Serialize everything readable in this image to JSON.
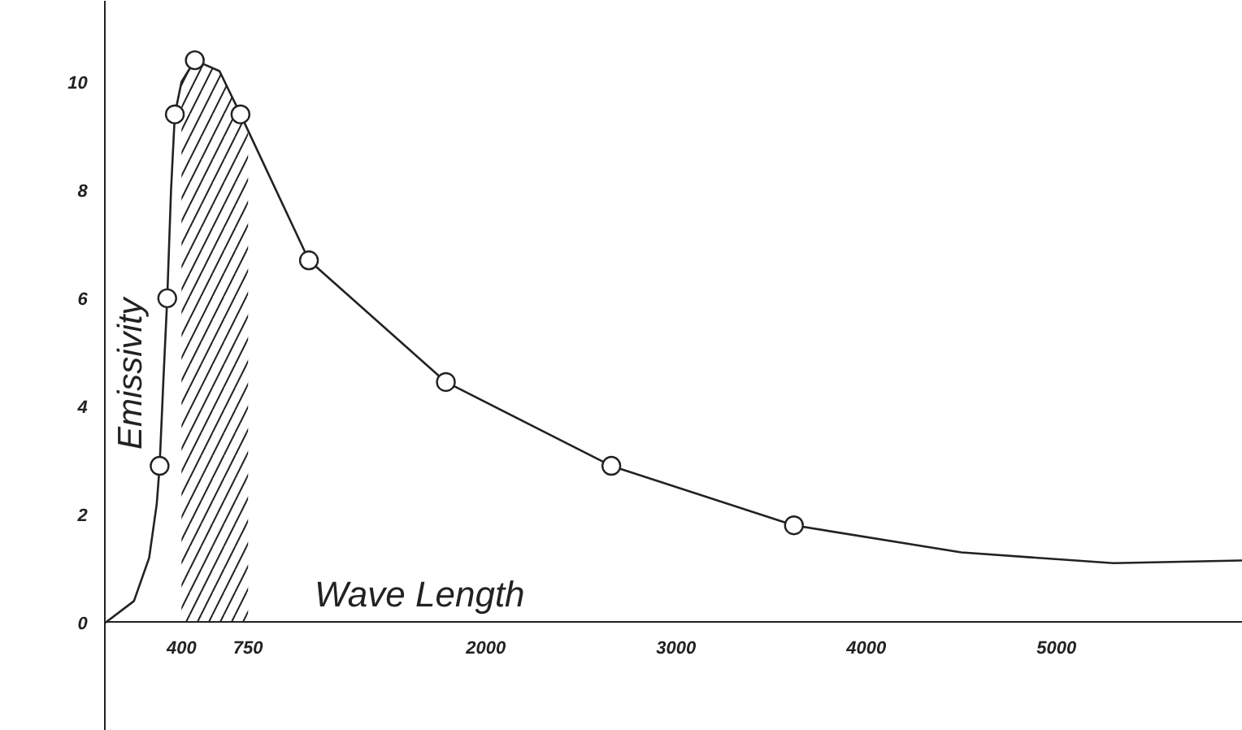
{
  "chart_data": {
    "type": "line",
    "xlabel": "Wave Length",
    "ylabel": "Emissivity",
    "xlim": [
      -550,
      5980
    ],
    "ylim": [
      -2,
      11.5
    ],
    "xticks": [
      400,
      750,
      2000,
      3000,
      4000,
      5000
    ],
    "yticks": [
      0,
      2,
      4,
      6,
      8,
      10
    ],
    "grid": false,
    "series": [
      {
        "color": "#222222",
        "marker": "none",
        "x": [
          0,
          150,
          230,
          270,
          285,
          305,
          325,
          345,
          365,
          400,
          470,
          600,
          710,
          1070,
          1790,
          2660,
          3620,
          4500,
          5300,
          5980
        ],
        "values": [
          0,
          0.4,
          1.2,
          2.2,
          2.9,
          4.5,
          6.0,
          8.0,
          9.4,
          10.0,
          10.4,
          10.2,
          9.4,
          6.7,
          4.45,
          2.9,
          1.8,
          1.3,
          1.1,
          1.15
        ]
      },
      {
        "type": "scatter",
        "color": "#222222",
        "marker": "circle",
        "x": [
          285,
          325,
          365,
          470,
          710,
          1070,
          1790,
          2660,
          3620
        ],
        "values": [
          2.9,
          6.0,
          9.4,
          10.4,
          9.4,
          6.7,
          4.45,
          2.9,
          1.8
        ]
      }
    ],
    "bands": [
      {
        "axis": "x",
        "from": 400,
        "to": 750,
        "color": "#222222"
      }
    ]
  }
}
